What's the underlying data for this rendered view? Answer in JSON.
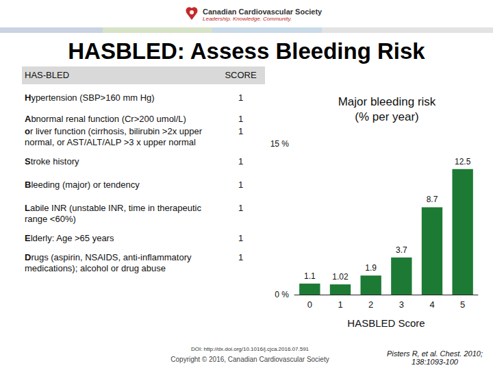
{
  "header": {
    "organization": "Canadian Cardiovascular Society",
    "tagline": "Leadership. Knowledge. Community.",
    "title": "HASBLED: Assess Bleeding Risk"
  },
  "table": {
    "columns": [
      "HAS-BLED",
      "SCORE"
    ],
    "rows": [
      [
        "Hypertension (SBP>160 mm Hg)",
        1
      ],
      [
        "Abnormal renal function (Cr>200 umol/L)",
        1
      ],
      [
        "or liver function (cirrhosis, bilirubin >2x upper normal, or AST/ALT/ALP >3 x upper normal",
        1
      ],
      [
        "Stroke history",
        1
      ],
      [
        "Bleeding (major) or tendency",
        1
      ],
      [
        "Labile INR (unstable INR, time in therapeutic range <60%)",
        1
      ],
      [
        "Elderly: Age >65 years",
        1
      ],
      [
        "Drugs (aspirin, NSAIDS, anti-inflammatory medications); alcohol or drug abuse",
        1
      ]
    ]
  },
  "chart_data": {
    "type": "bar",
    "title": "Major bleeding risk\n(% per year)",
    "x_label": "HASBLED Score",
    "categories": [
      "0",
      "1",
      "2",
      "3",
      "4",
      "5"
    ],
    "values": [
      1.1,
      1.02,
      1.9,
      3.7,
      8.7,
      12.5
    ],
    "color": "#1d7a34",
    "ylim": [
      0,
      15
    ],
    "yticks": [
      {
        "value": 0,
        "label": "0 %"
      },
      {
        "value": 15,
        "label": "15 %"
      }
    ],
    "grid": false,
    "data_labels": true
  },
  "footer": {
    "doi": "DOI: http://dx.doi.org/10.1016/j.cjca.2016.07.591",
    "copyright": "Copyright © 2016, Canadian Cardiovascular Society",
    "citation": "Pisters R, et al. Chest. 2010; 138:1093-100"
  }
}
